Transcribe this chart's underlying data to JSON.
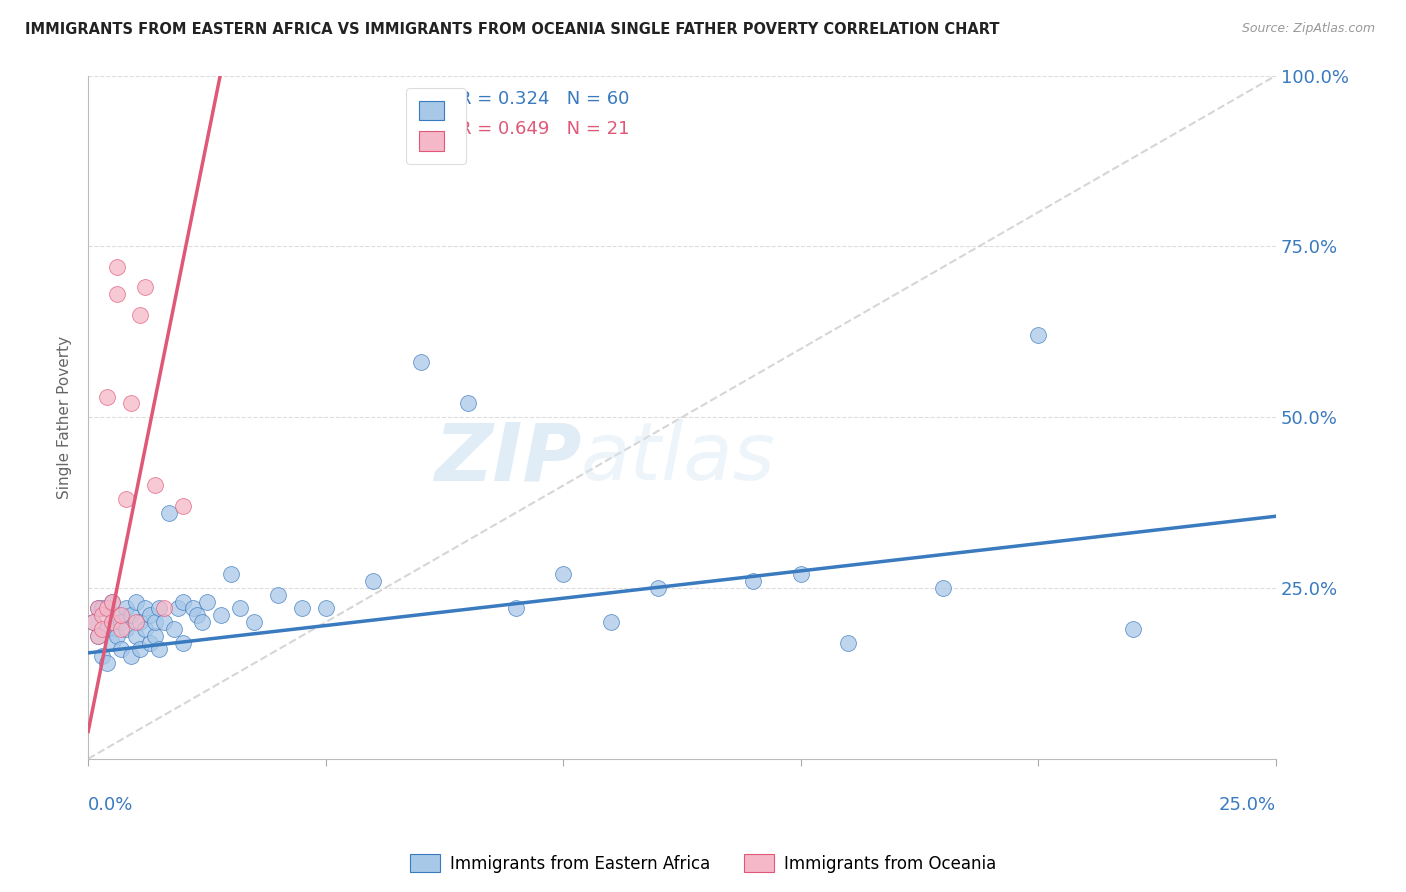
{
  "title": "IMMIGRANTS FROM EASTERN AFRICA VS IMMIGRANTS FROM OCEANIA SINGLE FATHER POVERTY CORRELATION CHART",
  "source": "Source: ZipAtlas.com",
  "ylabel": "Single Father Poverty",
  "right_yticks": [
    "100.0%",
    "75.0%",
    "50.0%",
    "25.0%"
  ],
  "right_ytick_vals": [
    1.0,
    0.75,
    0.5,
    0.25
  ],
  "xlim": [
    0.0,
    0.25
  ],
  "ylim": [
    0.0,
    1.0
  ],
  "legend_r1": "0.324",
  "legend_n1": "60",
  "legend_r2": "0.649",
  "legend_n2": "21",
  "color_blue": "#a8c8e8",
  "color_pink": "#f4b8c8",
  "color_blue_line": "#3a7abf",
  "color_pink_line": "#e05878",
  "color_diag": "#cccccc",
  "watermark_text": "ZIP",
  "watermark_text2": "atlas",
  "scatter_blue_x": [
    0.001,
    0.002,
    0.002,
    0.003,
    0.003,
    0.004,
    0.004,
    0.005,
    0.005,
    0.005,
    0.006,
    0.006,
    0.007,
    0.007,
    0.008,
    0.008,
    0.009,
    0.009,
    0.01,
    0.01,
    0.011,
    0.011,
    0.012,
    0.012,
    0.013,
    0.013,
    0.014,
    0.014,
    0.015,
    0.015,
    0.016,
    0.017,
    0.018,
    0.019,
    0.02,
    0.02,
    0.022,
    0.023,
    0.024,
    0.025,
    0.028,
    0.03,
    0.032,
    0.035,
    0.04,
    0.045,
    0.05,
    0.06,
    0.07,
    0.08,
    0.09,
    0.1,
    0.11,
    0.12,
    0.14,
    0.15,
    0.16,
    0.18,
    0.2,
    0.22
  ],
  "scatter_blue_y": [
    0.2,
    0.18,
    0.22,
    0.15,
    0.22,
    0.19,
    0.14,
    0.2,
    0.17,
    0.23,
    0.18,
    0.21,
    0.16,
    0.2,
    0.19,
    0.22,
    0.15,
    0.21,
    0.18,
    0.23,
    0.2,
    0.16,
    0.19,
    0.22,
    0.17,
    0.21,
    0.18,
    0.2,
    0.22,
    0.16,
    0.2,
    0.36,
    0.19,
    0.22,
    0.17,
    0.23,
    0.22,
    0.21,
    0.2,
    0.23,
    0.21,
    0.27,
    0.22,
    0.2,
    0.24,
    0.22,
    0.22,
    0.26,
    0.58,
    0.52,
    0.22,
    0.27,
    0.2,
    0.25,
    0.26,
    0.27,
    0.17,
    0.25,
    0.62,
    0.19
  ],
  "scatter_pink_x": [
    0.001,
    0.002,
    0.002,
    0.003,
    0.003,
    0.004,
    0.004,
    0.005,
    0.005,
    0.006,
    0.006,
    0.007,
    0.007,
    0.008,
    0.009,
    0.01,
    0.011,
    0.012,
    0.014,
    0.016,
    0.02
  ],
  "scatter_pink_y": [
    0.2,
    0.22,
    0.18,
    0.21,
    0.19,
    0.53,
    0.22,
    0.2,
    0.23,
    0.68,
    0.72,
    0.19,
    0.21,
    0.38,
    0.52,
    0.2,
    0.65,
    0.69,
    0.4,
    0.22,
    0.37
  ],
  "blue_line_y0": 0.155,
  "blue_line_y1": 0.355,
  "pink_line_x0": 0.0,
  "pink_line_y0": 0.04,
  "pink_line_x1": 0.022,
  "pink_line_y1": 0.8
}
